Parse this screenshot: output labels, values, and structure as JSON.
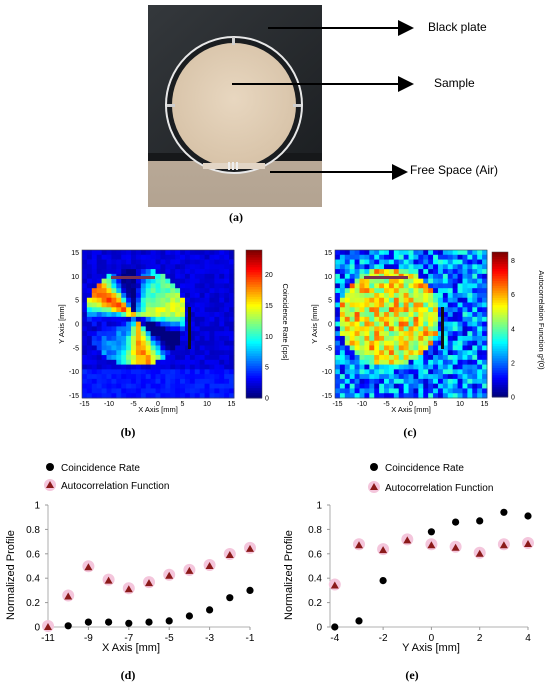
{
  "figure_a": {
    "caption": "(a)",
    "annotations": [
      "Black plate",
      "Sample",
      "Free Space (Air)"
    ]
  },
  "figure_b": {
    "caption": "(b)",
    "xlabel": "X Axis [mm]",
    "ylabel": "Y Axis [mm]",
    "colorbar_label": "Coincidence Rate [cps]",
    "ticks": [
      "-15",
      "-10",
      "-5",
      "0",
      "5",
      "10",
      "15"
    ],
    "colorbar_ticks": [
      "0",
      "5",
      "10",
      "15",
      "20"
    ]
  },
  "figure_c": {
    "caption": "(c)",
    "xlabel": "X Axis [mm]",
    "ylabel": "Y Axis [mm]",
    "colorbar_label": "Autocorrelation Function g²(0)",
    "ticks": [
      "-15",
      "-10",
      "-5",
      "0",
      "5",
      "10",
      "15"
    ],
    "colorbar_ticks": [
      "0",
      "2",
      "4",
      "6",
      "8"
    ]
  },
  "legend": {
    "coincidence": "Coincidence Rate",
    "autocorrelation": "Autocorrelation Function"
  },
  "colors": {
    "accent_triangle": "#8b1a1a",
    "marker_glow": "#f4c6dc"
  },
  "chart_data": [
    {
      "type": "scatter",
      "caption": "(d)",
      "xlabel": "X Axis [mm]",
      "ylabel": "Normalized Profile",
      "xlim": [
        -11,
        -1
      ],
      "ylim": [
        0,
        1
      ],
      "xticks": [
        -11,
        -9,
        -7,
        -5,
        -3,
        -1
      ],
      "yticks": [
        0,
        0.2,
        0.4,
        0.6,
        0.8,
        1
      ],
      "series": [
        {
          "name": "Coincidence Rate",
          "marker": "circle",
          "x": [
            -11,
            -10,
            -9,
            -8,
            -7,
            -6,
            -5,
            -4,
            -3,
            -2,
            -1
          ],
          "y": [
            0.0,
            0.01,
            0.04,
            0.04,
            0.03,
            0.04,
            0.05,
            0.09,
            0.14,
            0.24,
            0.3
          ]
        },
        {
          "name": "Autocorrelation Function",
          "marker": "triangle",
          "x": [
            -11,
            -10,
            -9,
            -8,
            -7,
            -6,
            -5,
            -4,
            -3,
            -2,
            -1
          ],
          "y": [
            0.0,
            0.25,
            0.49,
            0.38,
            0.31,
            0.36,
            0.42,
            0.46,
            0.5,
            0.59,
            0.64
          ]
        }
      ]
    },
    {
      "type": "scatter",
      "caption": "(e)",
      "xlabel": "Y Axis [mm]",
      "ylabel": "Normalized Profile",
      "xlim": [
        -4.2,
        4
      ],
      "ylim": [
        0,
        1
      ],
      "xticks": [
        -4,
        -2,
        0,
        2,
        4
      ],
      "yticks": [
        0,
        0.2,
        0.4,
        0.6,
        0.8,
        1
      ],
      "series": [
        {
          "name": "Coincidence Rate",
          "marker": "circle",
          "x": [
            -4,
            -3,
            -2,
            -1,
            0,
            1,
            2,
            3,
            4
          ],
          "y": [
            0.0,
            0.05,
            0.38,
            0.71,
            0.78,
            0.86,
            0.87,
            0.94,
            0.91
          ]
        },
        {
          "name": "Autocorrelation Function",
          "marker": "triangle",
          "x": [
            -4,
            -3,
            -2,
            -1,
            0,
            1,
            2,
            3,
            4
          ],
          "y": [
            0.34,
            0.67,
            0.63,
            0.71,
            0.67,
            0.65,
            0.6,
            0.67,
            0.68
          ]
        }
      ]
    }
  ]
}
